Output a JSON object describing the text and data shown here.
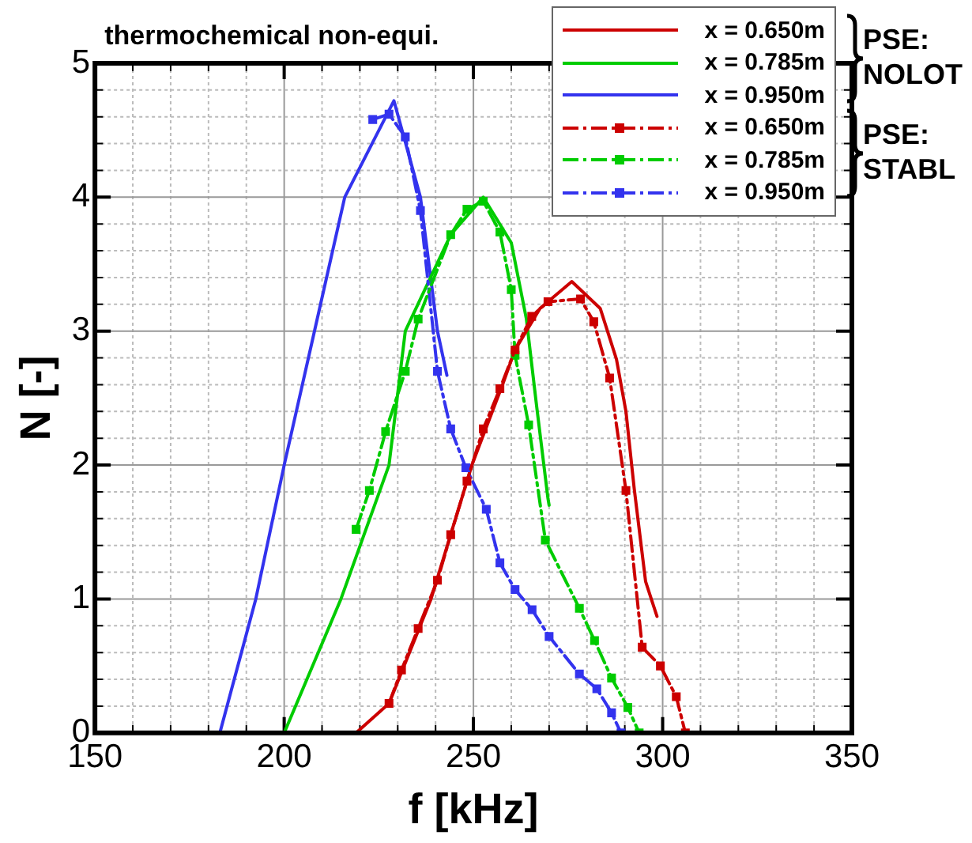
{
  "chart_data": {
    "type": "line",
    "title": "thermochemical non-equi.",
    "xlabel": "f [kHz]",
    "ylabel": "N [-]",
    "xlim": [
      150,
      350
    ],
    "xticks": [
      150,
      {
        "value": 160,
        "label": null
      },
      {
        "value": 170,
        "label": null
      },
      {
        "value": 180,
        "label": null
      },
      {
        "value": 190,
        "label": null
      },
      200,
      {
        "value": 210,
        "label": null
      },
      {
        "value": 220,
        "label": null
      },
      {
        "value": 230,
        "label": null
      },
      {
        "value": 240,
        "label": null
      },
      250,
      {
        "value": 260,
        "label": null
      },
      {
        "value": 270,
        "label": null
      },
      {
        "value": 280,
        "label": null
      },
      {
        "value": 290,
        "label": null
      },
      300,
      {
        "value": 310,
        "label": null
      },
      {
        "value": 320,
        "label": null
      },
      {
        "value": 330,
        "label": null
      },
      {
        "value": 340,
        "label": null
      },
      350
    ],
    "ylim": [
      0,
      5
    ],
    "yticks": [
      0,
      {
        "value": 0.2,
        "label": null
      },
      {
        "value": 0.4,
        "label": null
      },
      {
        "value": 0.6,
        "label": null
      },
      {
        "value": 0.8,
        "label": null
      },
      1,
      {
        "value": 1.2,
        "label": null
      },
      {
        "value": 1.4,
        "label": null
      },
      {
        "value": 1.6,
        "label": null
      },
      {
        "value": 1.8,
        "label": null
      },
      2,
      {
        "value": 2.2,
        "label": null
      },
      {
        "value": 2.4,
        "label": null
      },
      {
        "value": 2.6,
        "label": null
      },
      {
        "value": 2.8,
        "label": null
      },
      3,
      {
        "value": 3.2,
        "label": null
      },
      {
        "value": 3.4,
        "label": null
      },
      {
        "value": 3.6,
        "label": null
      },
      {
        "value": 3.8,
        "label": null
      },
      4,
      {
        "value": 4.2,
        "label": null
      },
      {
        "value": 4.4,
        "label": null
      },
      {
        "value": 4.6,
        "label": null
      },
      {
        "value": 4.8,
        "label": null
      },
      5
    ],
    "grid": true,
    "legend": "top right",
    "annotations": [
      "PSE: NOLOT",
      "PSE: STABL"
    ],
    "series": [
      {
        "name": "x = 0.650m",
        "color": "#cc0000",
        "line_style": "solid",
        "marker": "none",
        "x": [
          219,
          227.7,
          238.8,
          249.6,
          257.7,
          261,
          267.6,
          276,
          283.5,
          287.8,
          290.3,
          292.5,
          295.5,
          298.5
        ],
        "values": [
          0,
          0.22,
          1.0,
          2.0,
          2.6,
          2.86,
          3.17,
          3.37,
          3.17,
          2.79,
          2.4,
          1.82,
          1.13,
          0.87
        ]
      },
      {
        "name": "x = 0.785m",
        "color": "#00cc00",
        "line_style": "solid",
        "marker": "none",
        "x": [
          200,
          215,
          227.7,
          232,
          244,
          252.6,
          260,
          264,
          266.7,
          269.7,
          270
        ],
        "values": [
          0,
          1.0,
          2.0,
          3.0,
          3.72,
          4.0,
          3.66,
          3.09,
          2.44,
          1.75,
          1.7
        ]
      },
      {
        "name": "x = 0.950m",
        "color": "#3333ee",
        "line_style": "solid",
        "marker": "none",
        "x": [
          183,
          192.5,
          200,
          208,
          216,
          229,
          236,
          240.5,
          243
        ],
        "values": [
          0,
          1.0,
          2.0,
          3.0,
          4.0,
          4.72,
          4.0,
          3.0,
          2.67
        ]
      },
      {
        "name": "x = 0.650m",
        "color": "#cc0000",
        "line_style": "dashdot",
        "marker": "square",
        "x": [
          227.7,
          231,
          235.4,
          240.5,
          244,
          248.3,
          252.6,
          257,
          261,
          265.4,
          269.7,
          278.3,
          281.8,
          286,
          290.3,
          294.6,
          299.4,
          303.6,
          306
        ],
        "values": [
          0.22,
          0.47,
          0.78,
          1.14,
          1.48,
          1.88,
          2.27,
          2.57,
          2.86,
          3.11,
          3.22,
          3.24,
          3.07,
          2.65,
          1.81,
          0.64,
          0.5,
          0.27,
          0
        ]
      },
      {
        "name": "x = 0.785m",
        "color": "#00cc00",
        "line_style": "dashdot",
        "marker": "square",
        "x": [
          219,
          222.5,
          226.8,
          232,
          235.4,
          244,
          248.3,
          252.6,
          257,
          260,
          261,
          264.6,
          269,
          278,
          282,
          286.5,
          290.8,
          293.8
        ],
        "values": [
          1.52,
          1.81,
          2.25,
          2.7,
          3.09,
          3.72,
          3.91,
          3.97,
          3.74,
          3.31,
          2.82,
          2.3,
          1.44,
          0.93,
          0.69,
          0.41,
          0.19,
          0
        ]
      },
      {
        "name": "x = 0.950m",
        "color": "#3333ee",
        "line_style": "dashdot",
        "marker": "square",
        "x": [
          223.4,
          227.7,
          232,
          236,
          240.5,
          244,
          248,
          253.4,
          257,
          261,
          265.5,
          270,
          278,
          282.6,
          286.5,
          289
        ],
        "values": [
          4.58,
          4.62,
          4.45,
          3.9,
          2.7,
          2.27,
          1.98,
          1.67,
          1.27,
          1.07,
          0.92,
          0.72,
          0.44,
          0.33,
          0.15,
          0
        ]
      }
    ]
  }
}
